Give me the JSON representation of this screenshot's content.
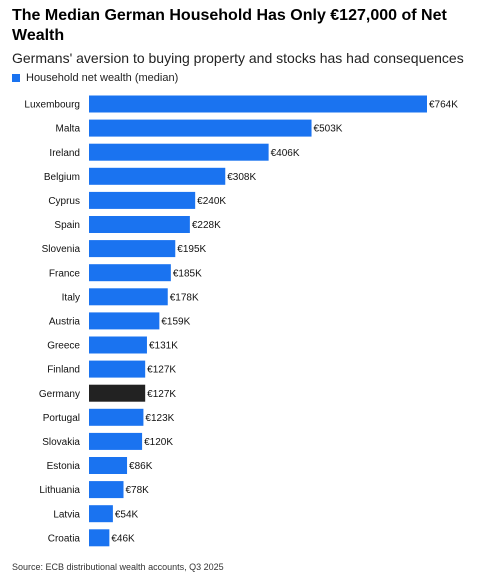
{
  "chart_data": {
    "type": "bar",
    "orientation": "horizontal",
    "title": "The Median German Household Has Only €127,000 of Net Wealth",
    "subtitle": "Germans' aversion to buying property and stocks has had consequences",
    "source": "Source: ECB distributional wealth accounts, Q3 2025",
    "categories": [
      "Luxembourg",
      "Malta",
      "Ireland",
      "Belgium",
      "Cyprus",
      "Spain",
      "Slovenia",
      "France",
      "Italy",
      "Austria",
      "Greece",
      "Finland",
      "Germany",
      "Portugal",
      "Slovakia",
      "Estonia",
      "Lithuania",
      "Latvia",
      "Croatia"
    ],
    "series": [
      {
        "name": "Household net wealth (median)",
        "color": "#1a73f0",
        "colors": [
          "#1a73f0",
          "#1a73f0",
          "#1a73f0",
          "#1a73f0",
          "#1a73f0",
          "#1a73f0",
          "#1a73f0",
          "#1a73f0",
          "#1a73f0",
          "#1a73f0",
          "#1a73f0",
          "#1a73f0",
          "#222222",
          "#1a73f0",
          "#1a73f0",
          "#1a73f0",
          "#1a73f0",
          "#1a73f0",
          "#1a73f0"
        ],
        "values": [
          764,
          503,
          406,
          308,
          240,
          228,
          195,
          185,
          178,
          159,
          131,
          127,
          127,
          123,
          120,
          86,
          78,
          54,
          46
        ],
        "value_labels": [
          "€764K",
          "€503K",
          "€406K",
          "€308K",
          "€240K",
          "€228K",
          "€195K",
          "€185K",
          "€178K",
          "€159K",
          "€131K",
          "€127K",
          "€127K",
          "€123K",
          "€120K",
          "€86K",
          "€78K",
          "€54K",
          "€46K"
        ]
      }
    ]
  }
}
